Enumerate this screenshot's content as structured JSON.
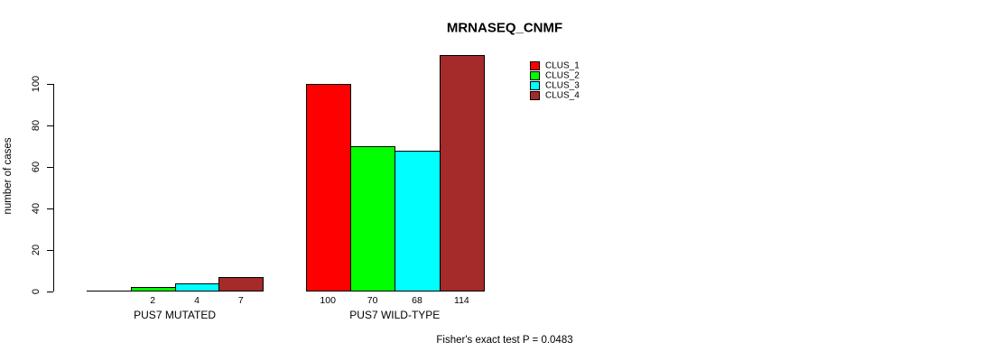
{
  "title": "MRNASEQ_CNMF",
  "footer": "Fisher's exact test P = 0.0483",
  "chart_data": {
    "type": "bar",
    "title": "MRNASEQ_CNMF",
    "xlabel": "",
    "ylabel": "number of cases",
    "yticks": [
      "0",
      "20",
      "40",
      "60",
      "80",
      "100"
    ],
    "ytick_values": [
      0,
      20,
      40,
      60,
      80,
      100
    ],
    "ylim": [
      0,
      115
    ],
    "grid": false,
    "legend_position": "top-right",
    "categories": [
      "PUS7 MUTATED",
      "PUS7 WILD-TYPE"
    ],
    "series": [
      {
        "name": "CLUS_1",
        "color": "#FF0000",
        "values": [
          0,
          100
        ]
      },
      {
        "name": "CLUS_2",
        "color": "#00FF00",
        "values": [
          2,
          70
        ]
      },
      {
        "name": "CLUS_3",
        "color": "#00FFFF",
        "values": [
          4,
          68
        ]
      },
      {
        "name": "CLUS_4",
        "color": "#A52A2A",
        "values": [
          7,
          114
        ]
      }
    ],
    "bar_value_labels": [
      [
        "",
        "2",
        "4",
        "7"
      ],
      [
        "100",
        "70",
        "68",
        "114"
      ]
    ],
    "annotation": "Fisher's exact test P = 0.0483"
  },
  "legend": {
    "items": [
      {
        "label": "CLUS_1",
        "color": "#FF0000"
      },
      {
        "label": "CLUS_2",
        "color": "#00FF00"
      },
      {
        "label": "CLUS_3",
        "color": "#00FFFF"
      },
      {
        "label": "CLUS_4",
        "color": "#A52A2A"
      }
    ]
  }
}
